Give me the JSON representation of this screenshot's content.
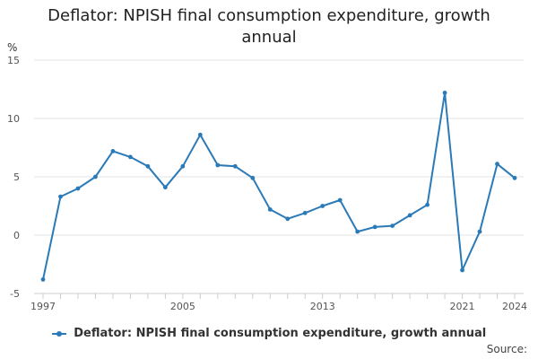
{
  "chart_data": {
    "type": "line",
    "title": "Deflator: NPISH final consumption expenditure, growth annual",
    "ylabel": "%",
    "xlabel": "",
    "x": [
      1997,
      1998,
      1999,
      2000,
      2001,
      2002,
      2003,
      2004,
      2005,
      2006,
      2007,
      2008,
      2009,
      2010,
      2011,
      2012,
      2013,
      2014,
      2015,
      2016,
      2017,
      2018,
      2019,
      2020,
      2021,
      2022,
      2023,
      2024
    ],
    "x_ticks": [
      1997,
      2005,
      2013,
      2021,
      2024
    ],
    "ylim": [
      -5,
      15
    ],
    "y_ticks": [
      -5,
      0,
      5,
      10,
      15
    ],
    "grid": true,
    "legend_position": "bottom",
    "series": [
      {
        "name": "Deflator: NPISH final consumption expenditure, growth annual",
        "color": "#2a7ab8",
        "values": [
          -3.8,
          3.3,
          4.0,
          5.0,
          7.2,
          6.7,
          5.9,
          4.1,
          5.9,
          8.6,
          6.0,
          5.9,
          4.9,
          2.2,
          1.4,
          1.9,
          2.5,
          3.0,
          0.3,
          0.7,
          0.8,
          1.7,
          2.6,
          12.2,
          -3.0,
          0.3,
          6.1,
          4.9
        ]
      }
    ]
  },
  "source_label": "Source:"
}
